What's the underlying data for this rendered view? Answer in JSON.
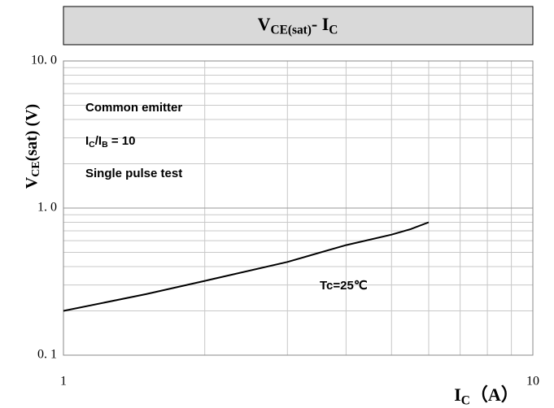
{
  "chart_data": {
    "type": "line",
    "title": [
      {
        "text": "V"
      },
      {
        "text": "CE(sat)",
        "sub": true
      },
      {
        "text": "- I"
      },
      {
        "text": "C",
        "sub": true
      }
    ],
    "y_label": [
      {
        "text": "V"
      },
      {
        "text": "CE",
        "sub": true
      },
      {
        "text": "(sat) (V)"
      }
    ],
    "x_label": [
      {
        "text": "I"
      },
      {
        "text": "C",
        "sub": true
      },
      {
        "text": "（A）"
      }
    ],
    "annotations": [
      [
        {
          "text": "Common emitter"
        }
      ],
      [
        {
          "text": "I"
        },
        {
          "text": "C",
          "sub": true
        },
        {
          "text": "/I"
        },
        {
          "text": "B",
          "sub": true
        },
        {
          "text": " = 10"
        }
      ],
      [
        {
          "text": "Single pulse test"
        }
      ],
      [
        {
          "text": "Tc=25℃"
        }
      ]
    ],
    "x": [
      1,
      1.5,
      2,
      3,
      4,
      5,
      5.5,
      6
    ],
    "series": [
      {
        "color": "#000000",
        "values": [
          0.2,
          0.26,
          0.32,
          0.43,
          0.56,
          0.66,
          0.72,
          0.8
        ]
      }
    ],
    "xlim": [
      1,
      10
    ],
    "ylim": [
      0.1,
      10
    ],
    "xticks": [
      1,
      10
    ],
    "yticks": [
      {
        "value": 0.1,
        "label": "0. 1"
      },
      {
        "value": 1,
        "label": "1. 0"
      },
      {
        "value": 10,
        "label": "10. 0"
      }
    ],
    "minor_xticks": [
      2,
      3,
      4,
      5,
      6,
      7,
      8,
      9
    ],
    "minor_yticks": [
      0.2,
      0.3,
      0.4,
      0.5,
      0.6,
      0.7,
      0.8,
      0.9,
      2,
      3,
      4,
      5,
      6,
      7,
      8,
      9
    ],
    "log_x": true,
    "log_y": true,
    "grid": true
  }
}
